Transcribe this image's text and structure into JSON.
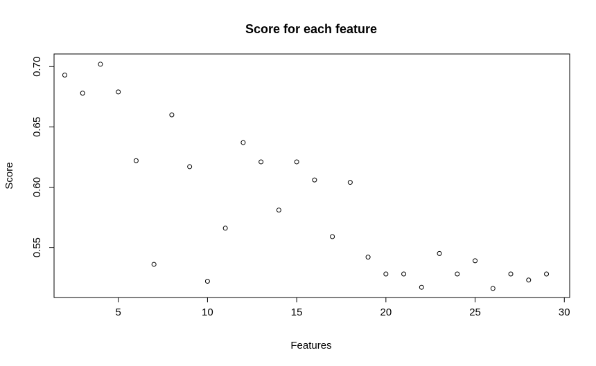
{
  "chart_data": {
    "type": "scatter",
    "title": "Score for each feature",
    "xlabel": "Features",
    "ylabel": "Score",
    "xlim": [
      1.4,
      30.3
    ],
    "ylim": [
      0.5085,
      0.7105
    ],
    "x_ticks": [
      5,
      10,
      15,
      20,
      25,
      30
    ],
    "y_ticks": [
      0.55,
      0.6,
      0.65,
      0.7
    ],
    "x_tick_labels": [
      "5",
      "10",
      "15",
      "20",
      "25",
      "30"
    ],
    "y_tick_labels": [
      "0.55",
      "0.60",
      "0.65",
      "0.70"
    ],
    "grid": false,
    "legend": "none",
    "marker": "open-circle",
    "point_color": "#000000",
    "x": [
      2,
      3,
      4,
      5,
      6,
      7,
      8,
      9,
      10,
      11,
      12,
      13,
      14,
      15,
      16,
      17,
      18,
      19,
      20,
      21,
      22,
      23,
      24,
      25,
      26,
      27,
      28,
      29
    ],
    "y": [
      0.693,
      0.678,
      0.702,
      0.679,
      0.622,
      0.536,
      0.66,
      0.617,
      0.522,
      0.566,
      0.637,
      0.621,
      0.581,
      0.621,
      0.606,
      0.559,
      0.604,
      0.542,
      0.528,
      0.528,
      0.517,
      0.545,
      0.528,
      0.539,
      0.516,
      0.528,
      0.523,
      0.528
    ]
  }
}
